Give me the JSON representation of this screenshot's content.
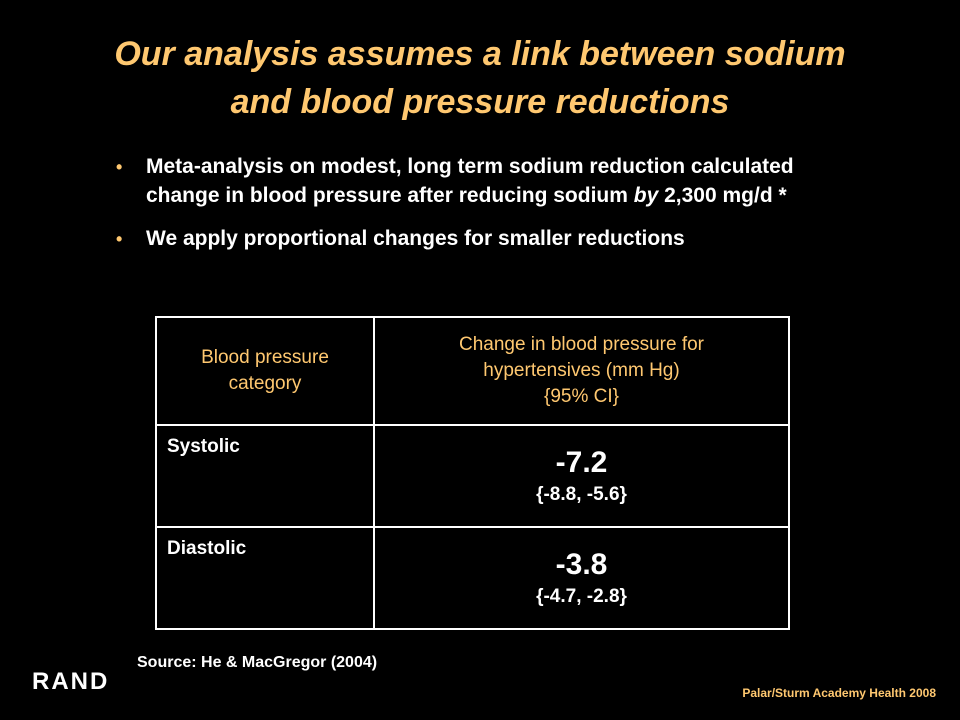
{
  "slide": {
    "title_line1": "Our analysis assumes a link between sodium",
    "title_line2": "and blood pressure reductions",
    "bullets": [
      {
        "text_before": "Meta-analysis on modest, long term sodium reduction calculated change in blood pressure after reducing sodium ",
        "emphasis": "by",
        "text_after": " 2,300 mg/d *"
      },
      {
        "text": "We apply proportional changes for smaller reductions"
      }
    ],
    "bullet_glyph": "•"
  },
  "table": {
    "header_category_line1": "Blood pressure",
    "header_category_line2": "category",
    "header_change_line1": "Change in blood pressure for",
    "header_change_line2": "hypertensives (mm Hg)",
    "header_change_line3": "{95% CI}",
    "rows": [
      {
        "category": "Systolic",
        "value": "-7.2",
        "ci": "{-8.8, -5.6}"
      },
      {
        "category": "Diastolic",
        "value": "-3.8",
        "ci": "{-4.7, -2.8}"
      }
    ]
  },
  "source": "Source: He & MacGregor (2004)",
  "logo_text": "RAND",
  "footer_credit": "Palar/Sturm Academy Health 2008",
  "colors": {
    "background": "#000000",
    "accent": "#ffc870",
    "text": "#ffffff"
  }
}
